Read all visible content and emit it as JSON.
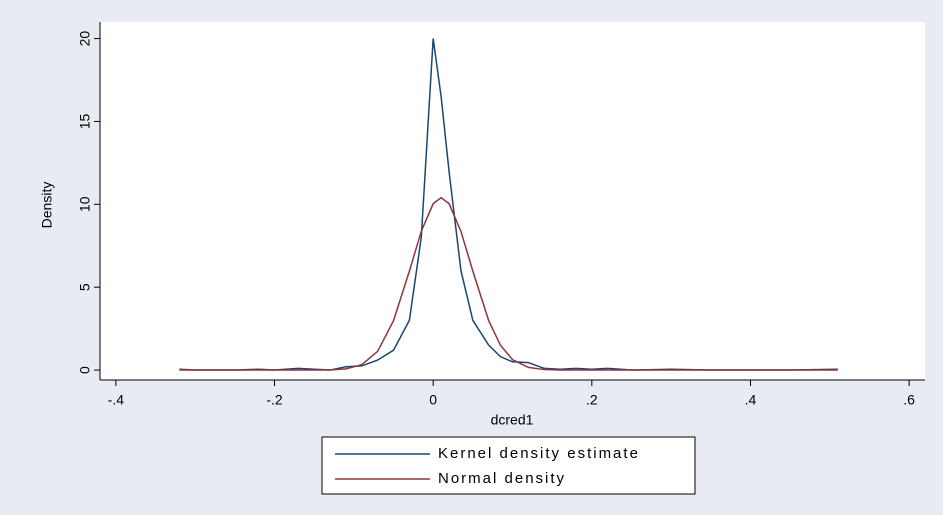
{
  "chart_data": {
    "type": "line",
    "x_label": "dcred1",
    "y_label": "Density",
    "x": [
      -0.32,
      -0.3,
      -0.25,
      -0.22,
      -0.2,
      -0.17,
      -0.15,
      -0.13,
      -0.11,
      -0.09,
      -0.07,
      -0.05,
      -0.03,
      -0.015,
      0,
      0.01,
      0.02,
      0.035,
      0.05,
      0.07,
      0.085,
      0.1,
      0.12,
      0.14,
      0.16,
      0.18,
      0.2,
      0.22,
      0.25,
      0.3,
      0.35,
      0.4,
      0.45,
      0.51
    ],
    "series": [
      {
        "name": "Kernel density estimate",
        "color": "#1a476f",
        "values": [
          0.05,
          0,
          0,
          0.05,
          0,
          0.1,
          0.05,
          0,
          0.2,
          0.25,
          0.6,
          1.2,
          3,
          8,
          20,
          16.5,
          12,
          6,
          3,
          1.5,
          0.8,
          0.5,
          0.45,
          0.1,
          0.05,
          0.1,
          0.05,
          0.1,
          0,
          0.05,
          0,
          0,
          0,
          0.05
        ]
      },
      {
        "name": "Normal density",
        "color": "#90353b",
        "values": [
          0,
          0,
          0,
          0,
          0,
          0,
          0,
          0,
          0.07,
          0.32,
          1.13,
          2.98,
          5.97,
          8.37,
          10.04,
          10.4,
          10.04,
          8.37,
          5.97,
          2.98,
          1.48,
          0.63,
          0.16,
          0.03,
          0,
          0,
          0,
          0,
          0,
          0,
          0,
          0,
          0,
          0
        ]
      }
    ],
    "xlim": [
      -0.42,
      0.62
    ],
    "xticks": [
      {
        "value": -0.4,
        "label": "-.4"
      },
      {
        "value": -0.2,
        "label": "-.2"
      },
      0,
      {
        "value": 0.2,
        "label": ".2"
      },
      {
        "value": 0.4,
        "label": ".4"
      },
      {
        "value": 0.6,
        "label": ".6"
      }
    ],
    "ylim": [
      -0.6,
      21
    ],
    "yticks": [
      0,
      5,
      10,
      15,
      20
    ],
    "grid": false
  }
}
